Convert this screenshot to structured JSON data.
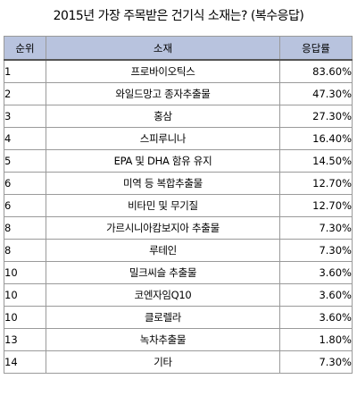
{
  "title": "2015년 가장 주목받은 건기식 소재는? (복수응답)",
  "table": {
    "headers": {
      "rank": "순위",
      "item": "소재",
      "rate": "응답률"
    },
    "rows": [
      {
        "rank": "1",
        "item": "프로바이오틱스",
        "rate": "83.60%"
      },
      {
        "rank": "2",
        "item": "와일드망고 종자추출물",
        "rate": "47.30%"
      },
      {
        "rank": "3",
        "item": "홍삼",
        "rate": "27.30%"
      },
      {
        "rank": "4",
        "item": "스피루니나",
        "rate": "16.40%"
      },
      {
        "rank": "5",
        "item": "EPA 및 DHA 함유 유지",
        "rate": "14.50%"
      },
      {
        "rank": "6",
        "item": "미역 등 복합추출물",
        "rate": "12.70%"
      },
      {
        "rank": "6",
        "item": "비타민 및 무기질",
        "rate": "12.70%"
      },
      {
        "rank": "8",
        "item": "가르시니아캄보지아 추출물",
        "rate": "7.30%"
      },
      {
        "rank": "8",
        "item": "루테인",
        "rate": "7.30%"
      },
      {
        "rank": "10",
        "item": "밀크씨슬 추출물",
        "rate": "3.60%"
      },
      {
        "rank": "10",
        "item": "코엔자임Q10",
        "rate": "3.60%"
      },
      {
        "rank": "10",
        "item": "클로렐라",
        "rate": "3.60%"
      },
      {
        "rank": "13",
        "item": "녹차추출물",
        "rate": "1.80%"
      },
      {
        "rank": "14",
        "item": "기타",
        "rate": "7.30%"
      }
    ]
  },
  "colors": {
    "header_background": "#b8c3de",
    "grid_line": "#9a9a9a",
    "text": "#000000"
  }
}
